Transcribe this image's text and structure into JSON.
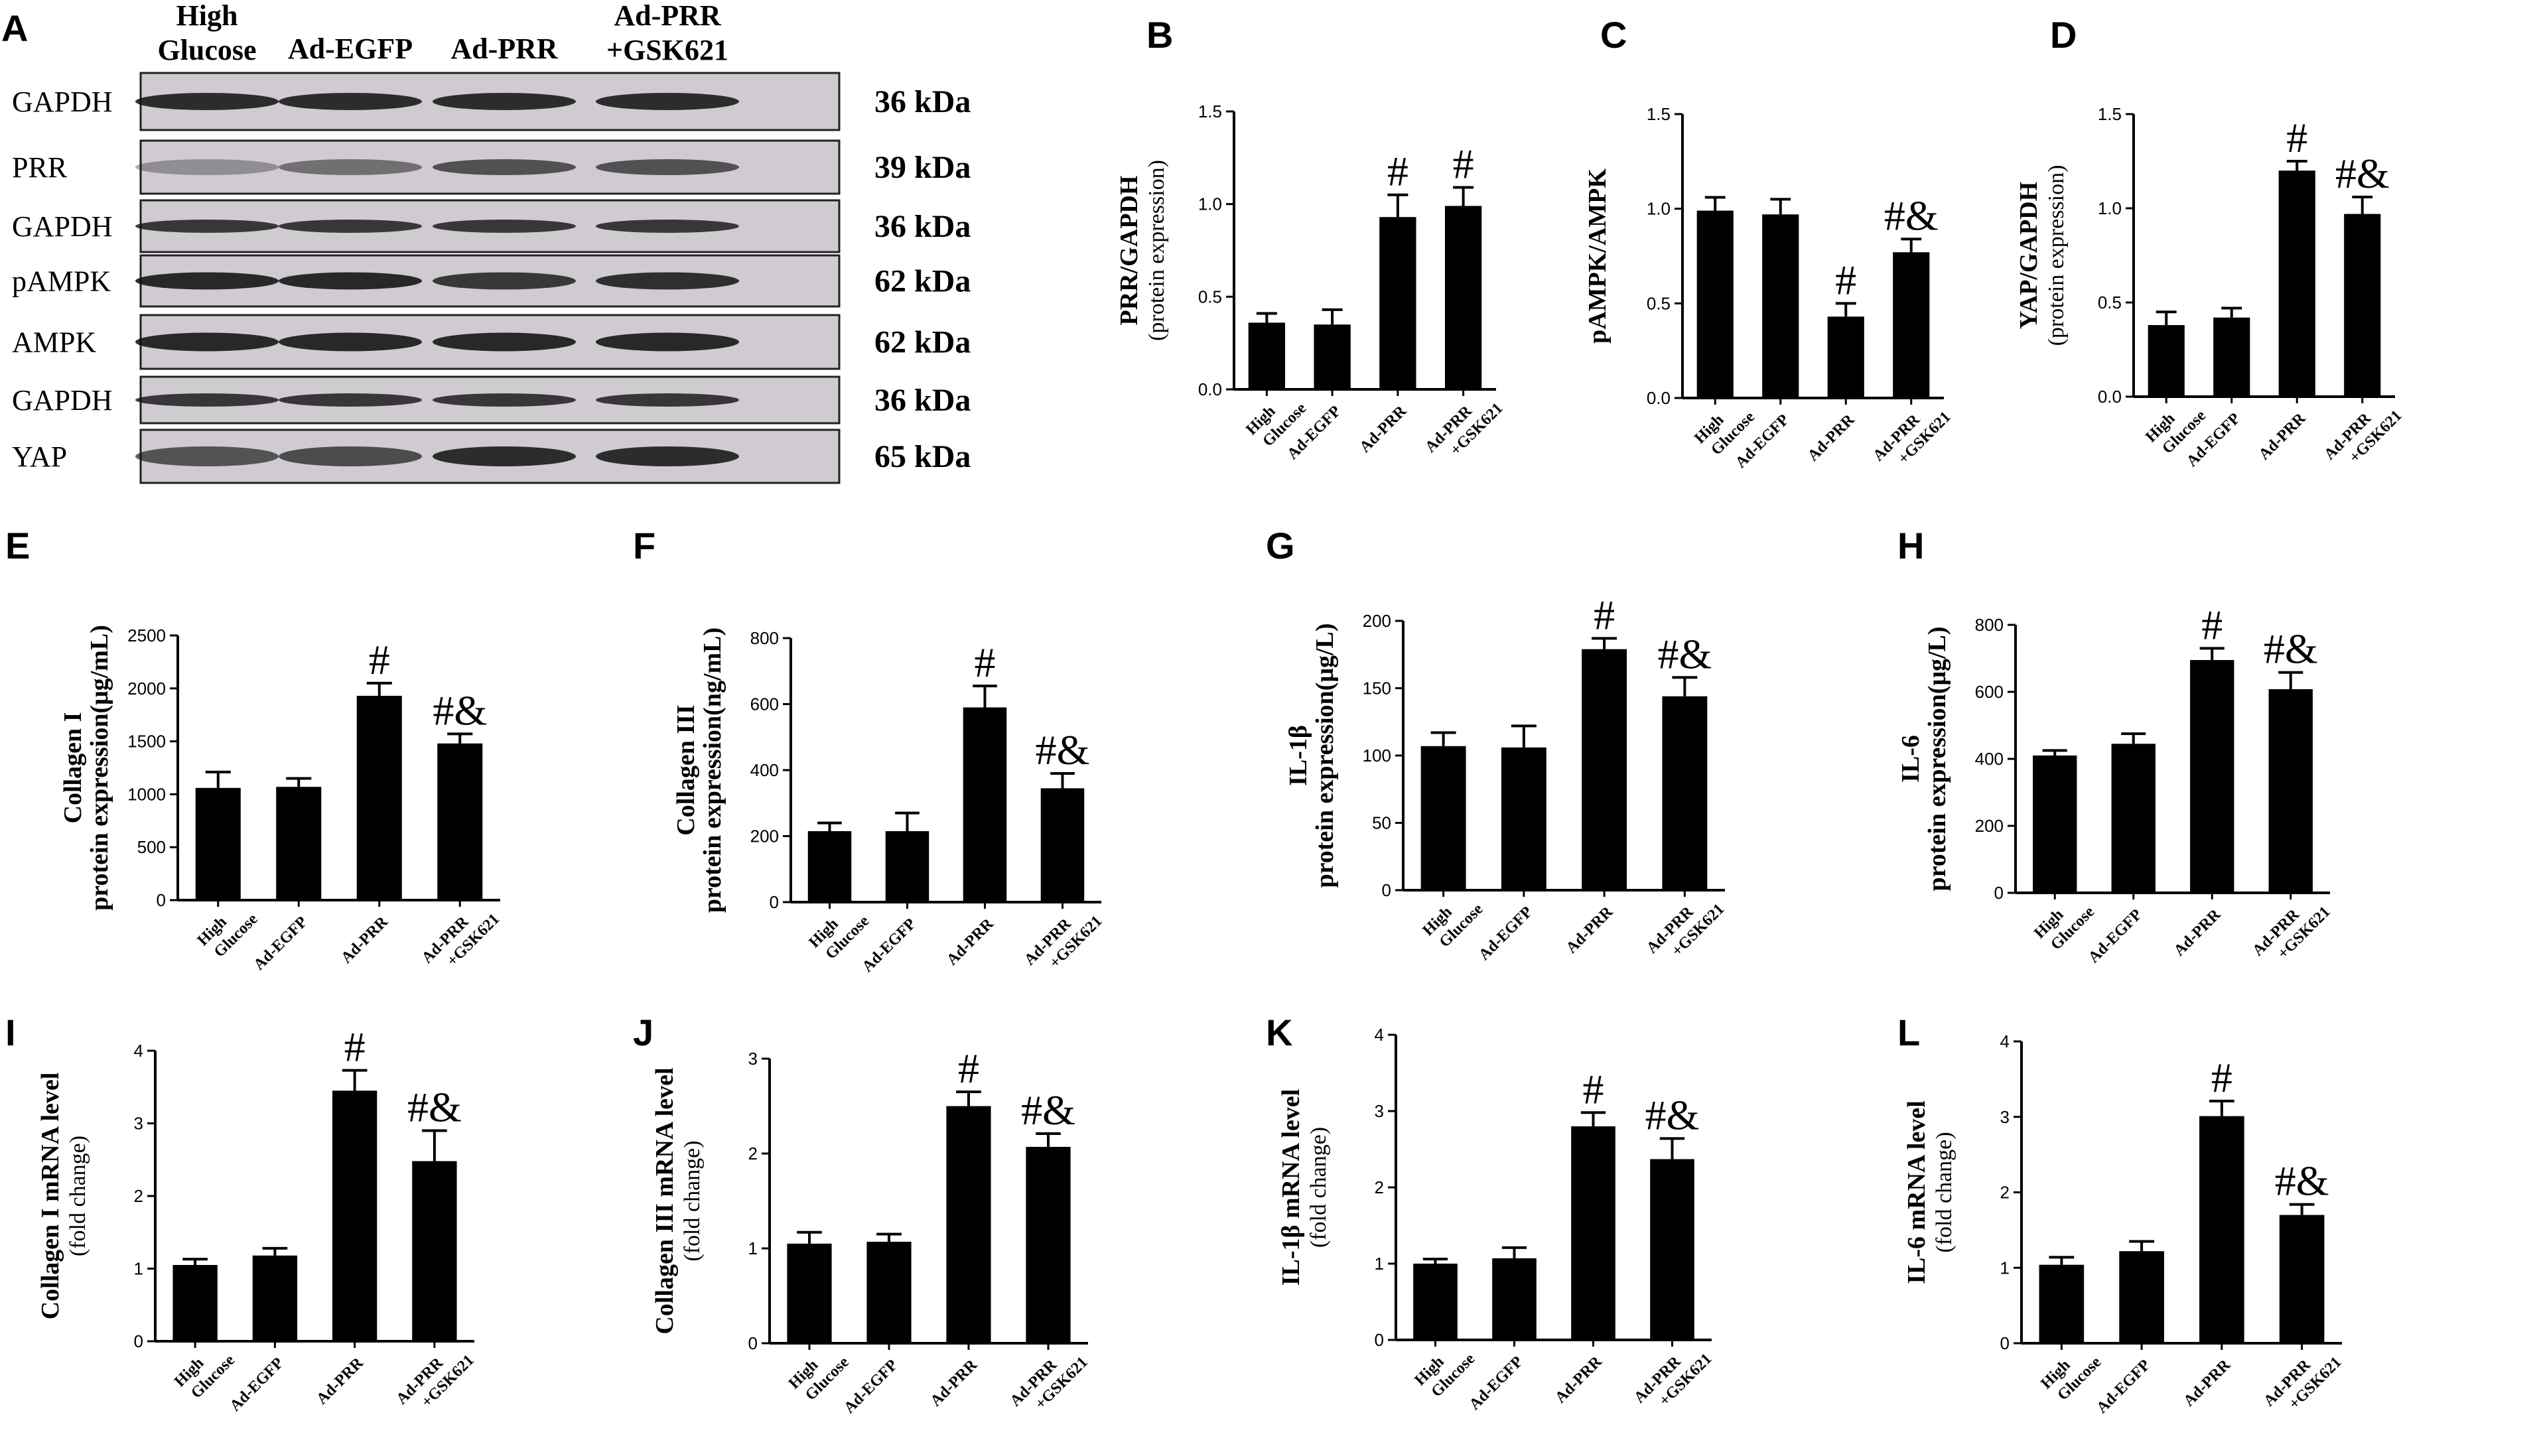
{
  "panels": [
    "A",
    "B",
    "C",
    "D",
    "E",
    "F",
    "G",
    "H",
    "I",
    "J",
    "K",
    "L"
  ],
  "western_blot": {
    "lane_headers": [
      [
        "High",
        "Glucose"
      ],
      [
        "Ad-EGFP"
      ],
      [
        "Ad-PRR"
      ],
      [
        "Ad-PRR",
        "+GSK621"
      ]
    ],
    "rows": [
      {
        "protein": "GAPDH",
        "kda": "36 kDa"
      },
      {
        "protein": "PRR",
        "kda": "39 kDa"
      },
      {
        "protein": "GAPDH",
        "kda": "36 kDa"
      },
      {
        "protein": "pAMPK",
        "kda": "62 kDa"
      },
      {
        "protein": "AMPK",
        "kda": "62 kDa"
      },
      {
        "protein": "GAPDH",
        "kda": "36 kDa"
      },
      {
        "protein": "YAP",
        "kda": "65 kDa"
      }
    ]
  },
  "chart_data": [
    {
      "panel": "B",
      "type": "bar",
      "categories": [
        "High Glucose",
        "Ad-EGFP",
        "Ad-PRR",
        "Ad-PRR +GSK621"
      ],
      "values": [
        0.36,
        0.35,
        0.93,
        0.99
      ],
      "errors": [
        0.05,
        0.08,
        0.12,
        0.1
      ],
      "annotations": [
        "",
        "",
        "#",
        "#"
      ],
      "ylabel": "PRR/GAPDH",
      "ylabel_sub": "(protein expression)",
      "ylim": [
        0,
        1.5
      ],
      "yticks": [
        "0.0",
        "0.5",
        "1.0",
        "1.5"
      ]
    },
    {
      "panel": "C",
      "type": "bar",
      "categories": [
        "High Glucose",
        "Ad-EGFP",
        "Ad-PRR",
        "Ad-PRR +GSK621"
      ],
      "values": [
        0.99,
        0.97,
        0.43,
        0.77
      ],
      "errors": [
        0.07,
        0.08,
        0.07,
        0.07
      ],
      "annotations": [
        "",
        "",
        "#",
        "#&"
      ],
      "ylabel": "pAMPK/AMPK",
      "ylabel_sub": "",
      "ylim": [
        0,
        1.5
      ],
      "yticks": [
        "0.0",
        "0.5",
        "1.0",
        "1.5"
      ]
    },
    {
      "panel": "D",
      "type": "bar",
      "categories": [
        "High Glucose",
        "Ad-EGFP",
        "Ad-PRR",
        "Ad-PRR +GSK621"
      ],
      "values": [
        0.38,
        0.42,
        1.2,
        0.97
      ],
      "errors": [
        0.07,
        0.05,
        0.05,
        0.09
      ],
      "annotations": [
        "",
        "",
        "#",
        "#&"
      ],
      "ylabel": "YAP/GAPDH",
      "ylabel_sub": "(protein expression)",
      "ylim": [
        0,
        1.5
      ],
      "yticks": [
        "0.0",
        "0.5",
        "1.0",
        "1.5"
      ]
    },
    {
      "panel": "E",
      "type": "bar",
      "categories": [
        "High Glucose",
        "Ad-EGFP",
        "Ad-PRR",
        "Ad-PRR +GSK621"
      ],
      "values": [
        1060,
        1070,
        1930,
        1480
      ],
      "errors": [
        150,
        80,
        120,
        90
      ],
      "annotations": [
        "",
        "",
        "#",
        "#&"
      ],
      "ylabel": "Collagen I",
      "ylabel_sub": "protein expression(μg/mL)",
      "ylim": [
        0,
        2500
      ],
      "yticks": [
        "0",
        "500",
        "1000",
        "1500",
        "2000",
        "2500"
      ]
    },
    {
      "panel": "F",
      "type": "bar",
      "categories": [
        "High Glucose",
        "Ad-EGFP",
        "Ad-PRR",
        "Ad-PRR +GSK621"
      ],
      "values": [
        215,
        215,
        590,
        345
      ],
      "errors": [
        25,
        55,
        65,
        45
      ],
      "annotations": [
        "",
        "",
        "#",
        "#&"
      ],
      "ylabel": "Collagen III",
      "ylabel_sub": "protein expression(ng/mL)",
      "ylim": [
        0,
        800
      ],
      "yticks": [
        "0",
        "200",
        "400",
        "600",
        "800"
      ]
    },
    {
      "panel": "G",
      "type": "bar",
      "categories": [
        "High Glucose",
        "Ad-EGFP",
        "Ad-PRR",
        "Ad-PRR +GSK621"
      ],
      "values": [
        107,
        106,
        179,
        144
      ],
      "errors": [
        10,
        16,
        8,
        14
      ],
      "annotations": [
        "",
        "",
        "#",
        "#&"
      ],
      "ylabel": "IL-1β",
      "ylabel_sub": "protein expression(μg/L)",
      "ylim": [
        0,
        200
      ],
      "yticks": [
        "0",
        "50",
        "100",
        "150",
        "200"
      ]
    },
    {
      "panel": "H",
      "type": "bar",
      "categories": [
        "High Glucose",
        "Ad-EGFP",
        "Ad-PRR",
        "Ad-PRR +GSK621"
      ],
      "values": [
        410,
        445,
        695,
        608
      ],
      "errors": [
        15,
        30,
        35,
        50
      ],
      "annotations": [
        "",
        "",
        "#",
        "#&"
      ],
      "ylabel": "IL-6",
      "ylabel_sub": "protein expression(μg/L)",
      "ylim": [
        0,
        800
      ],
      "yticks": [
        "0",
        "200",
        "400",
        "600",
        "800"
      ]
    },
    {
      "panel": "I",
      "type": "bar",
      "categories": [
        "High Glucose",
        "Ad-EGFP",
        "Ad-PRR",
        "Ad-PRR +GSK621"
      ],
      "values": [
        1.05,
        1.18,
        3.45,
        2.48
      ],
      "errors": [
        0.08,
        0.1,
        0.28,
        0.42
      ],
      "annotations": [
        "",
        "",
        "#",
        "#&"
      ],
      "ylabel": "Collagen I mRNA  level",
      "ylabel_sub": "(fold change)",
      "ylim": [
        0,
        4
      ],
      "yticks": [
        "0",
        "1",
        "2",
        "3",
        "4"
      ]
    },
    {
      "panel": "J",
      "type": "bar",
      "categories": [
        "High Glucose",
        "Ad-EGFP",
        "Ad-PRR",
        "Ad-PRR +GSK621"
      ],
      "values": [
        1.05,
        1.07,
        2.5,
        2.07
      ],
      "errors": [
        0.12,
        0.08,
        0.15,
        0.14
      ],
      "annotations": [
        "",
        "",
        "#",
        "#&"
      ],
      "ylabel": "Collagen III mRNA  level",
      "ylabel_sub": "(fold change)",
      "ylim": [
        0,
        3
      ],
      "yticks": [
        "0",
        "1",
        "2",
        "3"
      ]
    },
    {
      "panel": "K",
      "type": "bar",
      "categories": [
        "High Glucose",
        "Ad-EGFP",
        "Ad-PRR",
        "Ad-PRR +GSK621"
      ],
      "values": [
        1.0,
        1.07,
        2.8,
        2.37
      ],
      "errors": [
        0.06,
        0.14,
        0.18,
        0.27
      ],
      "annotations": [
        "",
        "",
        "#",
        "#&"
      ],
      "ylabel": "IL-1β mRNA  level",
      "ylabel_sub": "(fold change)",
      "ylim": [
        0,
        4
      ],
      "yticks": [
        "0",
        "1",
        "2",
        "3",
        "4"
      ]
    },
    {
      "panel": "L",
      "type": "bar",
      "categories": [
        "High Glucose",
        "Ad-EGFP",
        "Ad-PRR",
        "Ad-PRR +GSK621"
      ],
      "values": [
        1.04,
        1.22,
        3.01,
        1.7
      ],
      "errors": [
        0.1,
        0.13,
        0.2,
        0.14
      ],
      "annotations": [
        "",
        "",
        "#",
        "#&"
      ],
      "ylabel": "IL-6 mRNA  level",
      "ylabel_sub": "(fold change)",
      "ylim": [
        0,
        4
      ],
      "yticks": [
        "0",
        "1",
        "2",
        "3",
        "4"
      ]
    }
  ]
}
